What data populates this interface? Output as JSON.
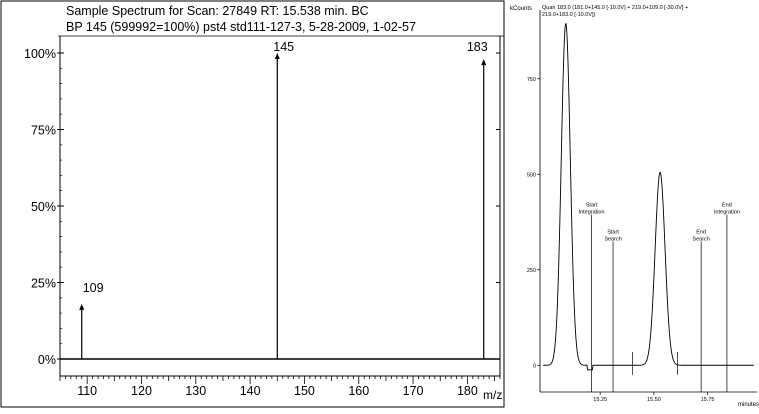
{
  "chart_data": [
    {
      "type": "bar",
      "title": "Sample Spectrum for Scan: 27849 RT: 15.538 min. BC",
      "subtitle": "BP 145 (599992=100%) pst4 std111-127-3, 5-28-2009, 1-02-57",
      "xlabel": "m/z",
      "ylabel": "",
      "x_ticks": [
        110,
        120,
        130,
        140,
        150,
        160,
        170,
        180
      ],
      "y_ticks": [
        "0%",
        "25%",
        "50%",
        "75%",
        "100%"
      ],
      "xlim": [
        105,
        186
      ],
      "ylim": [
        0,
        105
      ],
      "grid": false,
      "peaks": [
        {
          "mz": 109,
          "label": "109",
          "value": 18
        },
        {
          "mz": 145,
          "label": "145",
          "value": 100
        },
        {
          "mz": 183,
          "label": "183",
          "value": 98
        }
      ]
    },
    {
      "type": "line",
      "title": "Quan 183.0 (181.0+145.0 [-10.0V] + 219.0+109.0 [-30.0V] +",
      "title_line2": "219.0+183.0 [-10.0V])",
      "ylabel": "kCounts",
      "xlabel": "minutes",
      "x_ticks": [
        "15.25",
        "15.50",
        "15.75"
      ],
      "x_tick_values": [
        15.25,
        15.5,
        15.75
      ],
      "y_ticks": [
        "0",
        "250",
        "500",
        "750"
      ],
      "y_tick_values": [
        0,
        250,
        500,
        750
      ],
      "xlim": [
        14.97,
        15.98
      ],
      "ylim": [
        -70,
        930
      ],
      "grid": false,
      "peaks": [
        {
          "center": 15.09,
          "height": 895,
          "width": 0.021
        },
        {
          "center": 15.529,
          "height": 505,
          "width": 0.023
        }
      ],
      "markers": [
        {
          "x": 15.21,
          "line1": "Start",
          "line2": "Integration",
          "label_y": 410
        },
        {
          "x": 15.31,
          "line1": "Start",
          "line2": "Search",
          "label_y": 340
        },
        {
          "x": 15.72,
          "line1": "End",
          "line2": "Search",
          "label_y": 340
        },
        {
          "x": 15.84,
          "line1": "End",
          "line2": "Integration",
          "label_y": 410
        }
      ]
    }
  ]
}
